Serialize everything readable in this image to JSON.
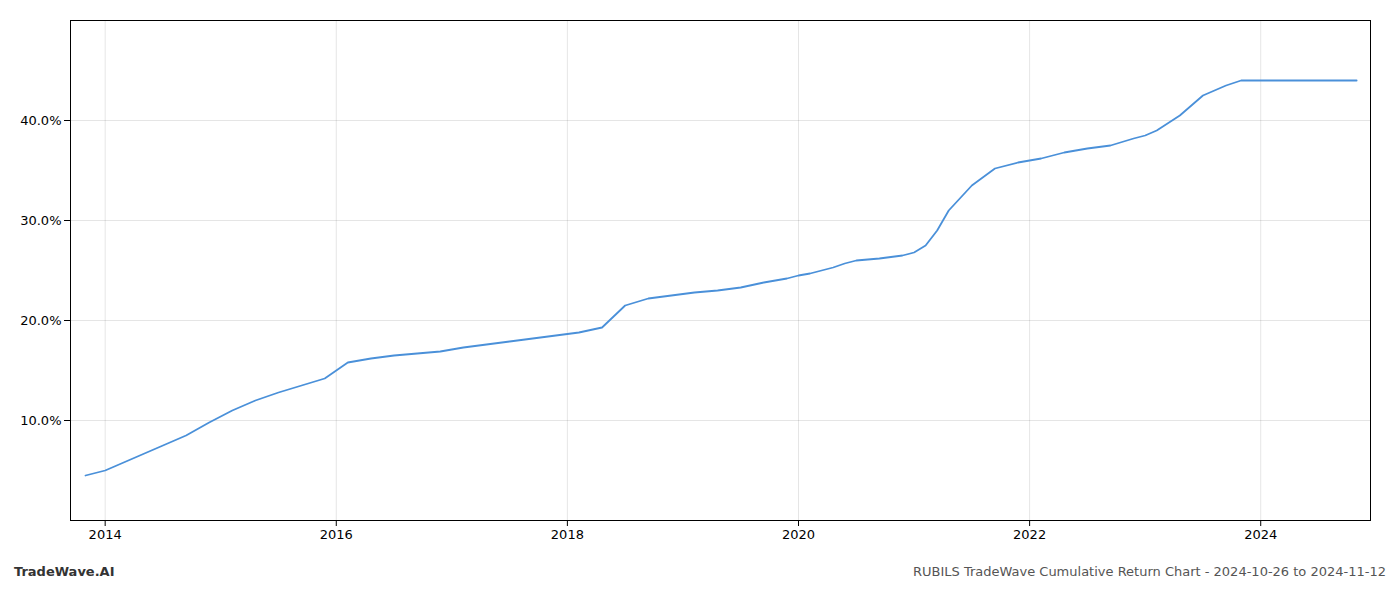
{
  "chart_data": {
    "type": "line",
    "x": [
      2013.83,
      2014.0,
      2014.1,
      2014.3,
      2014.5,
      2014.7,
      2014.9,
      2015.1,
      2015.3,
      2015.5,
      2015.7,
      2015.9,
      2016.1,
      2016.2,
      2016.3,
      2016.5,
      2016.7,
      2016.9,
      2017.1,
      2017.3,
      2017.5,
      2017.7,
      2017.9,
      2018.1,
      2018.3,
      2018.5,
      2018.7,
      2018.9,
      2019.1,
      2019.3,
      2019.5,
      2019.7,
      2019.9,
      2020.0,
      2020.1,
      2020.2,
      2020.3,
      2020.4,
      2020.5,
      2020.7,
      2020.9,
      2021.0,
      2021.1,
      2021.2,
      2021.3,
      2021.5,
      2021.7,
      2021.9,
      2022.0,
      2022.1,
      2022.2,
      2022.3,
      2022.5,
      2022.7,
      2022.9,
      2023.0,
      2023.1,
      2023.3,
      2023.5,
      2023.7,
      2023.83,
      2023.9,
      2024.0,
      2024.2,
      2024.5,
      2024.83
    ],
    "values": [
      4.5,
      5.0,
      5.5,
      6.5,
      7.5,
      8.5,
      9.8,
      11.0,
      12.0,
      12.8,
      13.5,
      14.2,
      15.8,
      16.0,
      16.2,
      16.5,
      16.7,
      16.9,
      17.3,
      17.6,
      17.9,
      18.2,
      18.5,
      18.8,
      19.3,
      21.5,
      22.2,
      22.5,
      22.8,
      23.0,
      23.3,
      23.8,
      24.2,
      24.5,
      24.7,
      25.0,
      25.3,
      25.7,
      26.0,
      26.2,
      26.5,
      26.8,
      27.5,
      29.0,
      31.0,
      33.5,
      35.2,
      35.8,
      36.0,
      36.2,
      36.5,
      36.8,
      37.2,
      37.5,
      38.2,
      38.5,
      39.0,
      40.5,
      42.5,
      43.5,
      44.0,
      44.0,
      44.0,
      44.0,
      44.0,
      44.0
    ],
    "color": "#4a90d9",
    "xlim": [
      2013.7,
      2024.95
    ],
    "ylim": [
      0,
      50
    ],
    "xticks": [
      2014,
      2016,
      2018,
      2020,
      2022,
      2024
    ],
    "yticks": [
      {
        "value": 10.0,
        "label": "10.0%"
      },
      {
        "value": 20.0,
        "label": "20.0%"
      },
      {
        "value": 30.0,
        "label": "30.0%"
      },
      {
        "value": 40.0,
        "label": "40.0%"
      }
    ],
    "grid": true,
    "annotations": [
      "TradeWave.AI",
      "RUBILS TradeWave Cumulative Return Chart - 2024-10-26 to 2024-11-12"
    ]
  }
}
